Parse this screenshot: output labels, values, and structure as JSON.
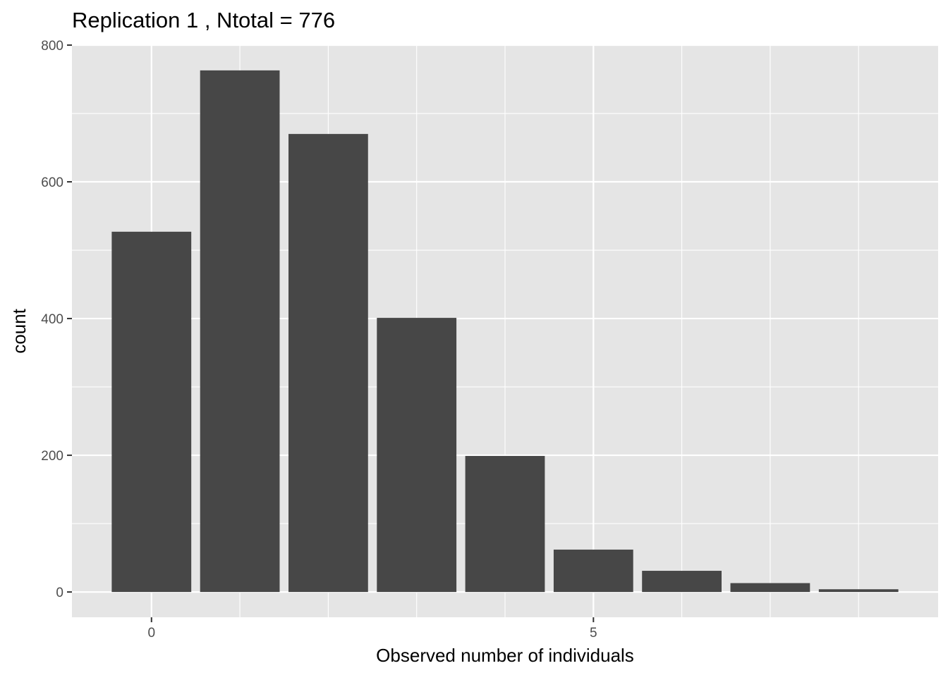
{
  "chart_data": {
    "type": "bar",
    "title": "Replication 1 , Ntotal =  776",
    "xlabel": "Observed number of individuals",
    "ylabel": "count",
    "x": [
      0,
      1,
      2,
      3,
      4,
      5,
      6,
      7,
      8
    ],
    "values": [
      527,
      763,
      670,
      401,
      199,
      62,
      31,
      13,
      4
    ],
    "xlim": [
      -0.9,
      8.9
    ],
    "ylim": [
      -37,
      800
    ],
    "x_ticks": [
      0,
      5
    ],
    "y_ticks": [
      0,
      200,
      400,
      600,
      800
    ],
    "grid": true,
    "legend": "none",
    "colors": {
      "bar": "#474747",
      "panel": "#e5e5e5",
      "grid": "#ffffff",
      "tick_label": "#4d4d4d",
      "tick_mark": "#333333"
    }
  }
}
